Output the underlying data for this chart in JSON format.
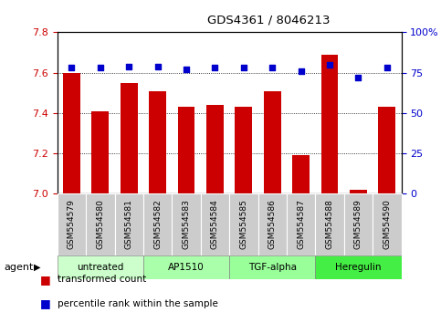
{
  "title": "GDS4361 / 8046213",
  "samples": [
    "GSM554579",
    "GSM554580",
    "GSM554581",
    "GSM554582",
    "GSM554583",
    "GSM554584",
    "GSM554585",
    "GSM554586",
    "GSM554587",
    "GSM554588",
    "GSM554589",
    "GSM554590"
  ],
  "bar_values": [
    7.6,
    7.41,
    7.55,
    7.51,
    7.43,
    7.44,
    7.43,
    7.51,
    7.19,
    7.69,
    7.02,
    7.43
  ],
  "dot_values": [
    78,
    78,
    79,
    79,
    77,
    78,
    78,
    78,
    76,
    80,
    72,
    78
  ],
  "ylim_left": [
    7.0,
    7.8
  ],
  "ylim_right": [
    0,
    100
  ],
  "yticks_left": [
    7.0,
    7.2,
    7.4,
    7.6,
    7.8
  ],
  "yticks_right": [
    0,
    25,
    50,
    75,
    100
  ],
  "ytick_labels_right": [
    "0",
    "25",
    "50",
    "75",
    "100%"
  ],
  "bar_color": "#cc0000",
  "dot_color": "#0000cc",
  "agent_groups": [
    {
      "label": "untreated",
      "start": 0,
      "end": 3,
      "color": "#ccffcc"
    },
    {
      "label": "AP1510",
      "start": 3,
      "end": 6,
      "color": "#aaffaa"
    },
    {
      "label": "TGF-alpha",
      "start": 6,
      "end": 9,
      "color": "#99ff99"
    },
    {
      "label": "Heregulin",
      "start": 9,
      "end": 12,
      "color": "#44ee44"
    }
  ],
  "legend_bar_label": "transformed count",
  "legend_dot_label": "percentile rank within the sample",
  "xlabel_agent": "agent",
  "tick_label_color_left": "#cc0000",
  "tick_label_color_right": "#0000cc"
}
